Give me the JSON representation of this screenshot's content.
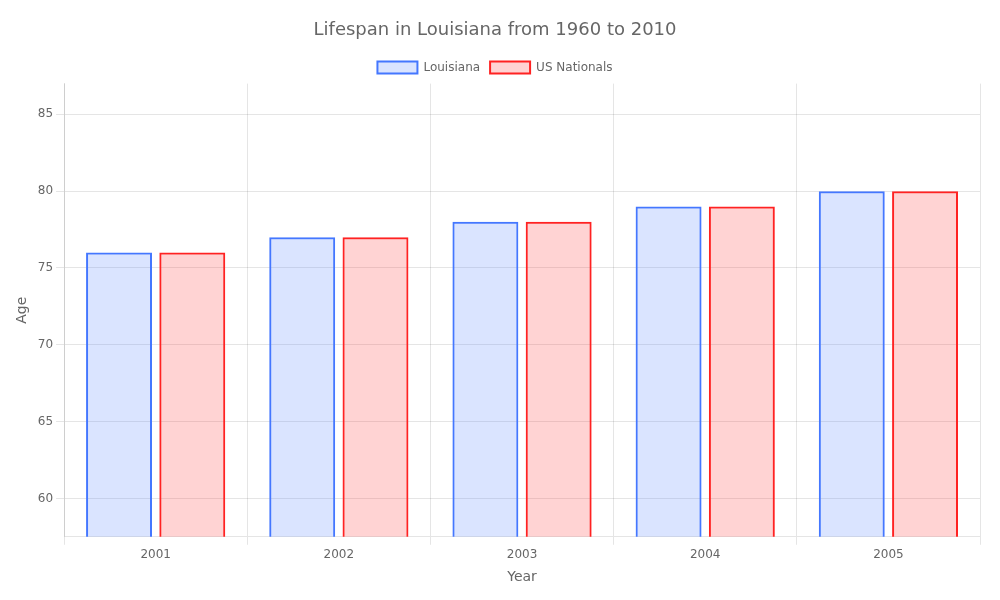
{
  "chart_data": {
    "type": "bar",
    "title": "Lifespan in Louisiana from 1960 to 2010",
    "xlabel": "Year",
    "ylabel": "Age",
    "categories": [
      "2001",
      "2002",
      "2003",
      "2004",
      "2005"
    ],
    "series": [
      {
        "name": "Louisiana",
        "color": "#4477ff",
        "values": [
          76,
          77,
          78,
          79,
          80
        ]
      },
      {
        "name": "US Nationals",
        "color": "#ff2222",
        "values": [
          76,
          77,
          78,
          79,
          80
        ]
      }
    ],
    "ylim": [
      57.5,
      87
    ],
    "yticks": [
      60,
      65,
      70,
      75,
      80,
      85
    ],
    "grid": true,
    "legend": "top"
  }
}
